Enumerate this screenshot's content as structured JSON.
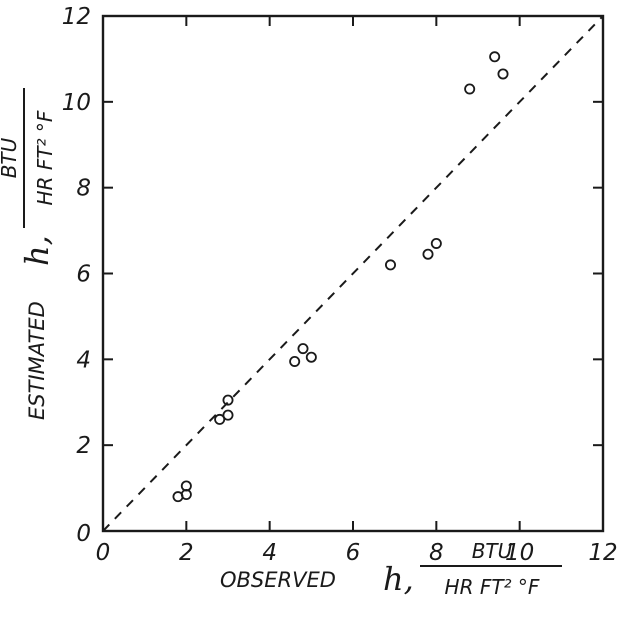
{
  "chart_data": {
    "type": "scatter",
    "title": "",
    "xlabel": "OBSERVED h, BTU / HR FT² °F",
    "ylabel": "ESTIMATED h, BTU / HR FT² °F",
    "x_label": {
      "main": "OBSERVED",
      "var": "h,",
      "num": "BTU",
      "den": "HR FT² °F"
    },
    "y_label": {
      "main": "ESTIMATED",
      "var": "h,",
      "num": "BTU",
      "den": "HR FT² °F"
    },
    "xlim": [
      0,
      12
    ],
    "ylim": [
      0,
      12
    ],
    "xticks": [
      "0",
      "2",
      "4",
      "6",
      "8",
      "10",
      "12"
    ],
    "yticks": [
      "0",
      "2",
      "4",
      "6",
      "8",
      "10",
      "12"
    ],
    "grid": false,
    "reference_line": {
      "style": "dashed",
      "from": [
        0,
        0
      ],
      "to": [
        12,
        12
      ]
    },
    "series": [
      {
        "marker": "open-circle",
        "points": [
          [
            1.8,
            0.8
          ],
          [
            2.0,
            0.85
          ],
          [
            2.0,
            1.05
          ],
          [
            2.8,
            2.6
          ],
          [
            3.0,
            2.7
          ],
          [
            3.0,
            3.05
          ],
          [
            4.6,
            3.95
          ],
          [
            4.8,
            4.25
          ],
          [
            5.0,
            4.05
          ],
          [
            6.9,
            6.2
          ],
          [
            7.8,
            6.45
          ],
          [
            8.0,
            6.7
          ],
          [
            8.8,
            10.3
          ],
          [
            9.4,
            11.05
          ],
          [
            9.6,
            10.65
          ]
        ]
      }
    ]
  },
  "colors": {
    "ink": "#1a1a1a",
    "background": "#ffffff"
  }
}
